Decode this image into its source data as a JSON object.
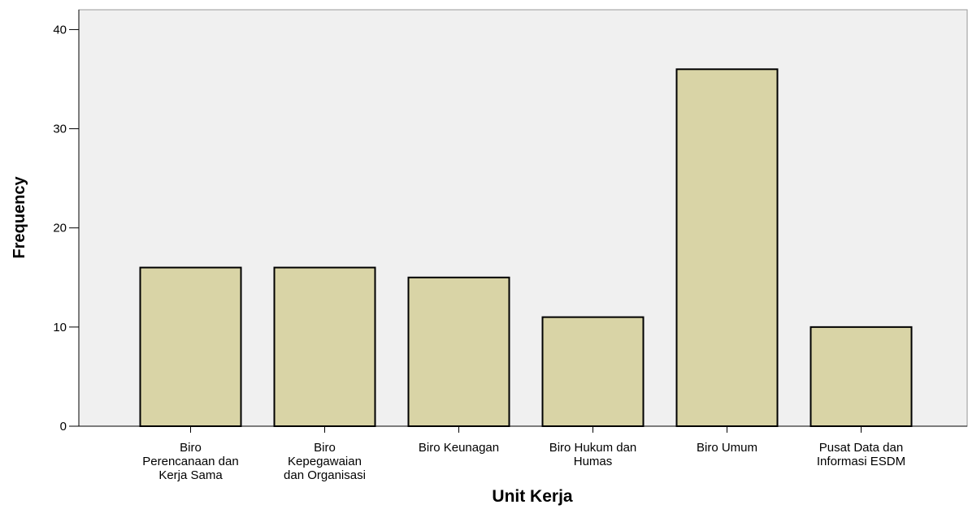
{
  "chart_data": {
    "type": "bar",
    "x_label": "Unit Kerja",
    "y_label": "Frequency",
    "categories": [
      "Biro Perencanaan dan Kerja Sama",
      "Biro Kepegawaian dan Organisasi",
      "Biro Keunagan",
      "Biro Hukum dan Humas",
      "Biro Umum",
      "Pusat Data dan Informasi ESDM"
    ],
    "values": [
      16,
      16,
      15,
      11,
      36,
      10
    ],
    "color": "#d9d4a6",
    "ylim": [
      0,
      42
    ],
    "yticks": [
      0,
      10,
      20,
      30,
      40
    ],
    "grid": false
  }
}
